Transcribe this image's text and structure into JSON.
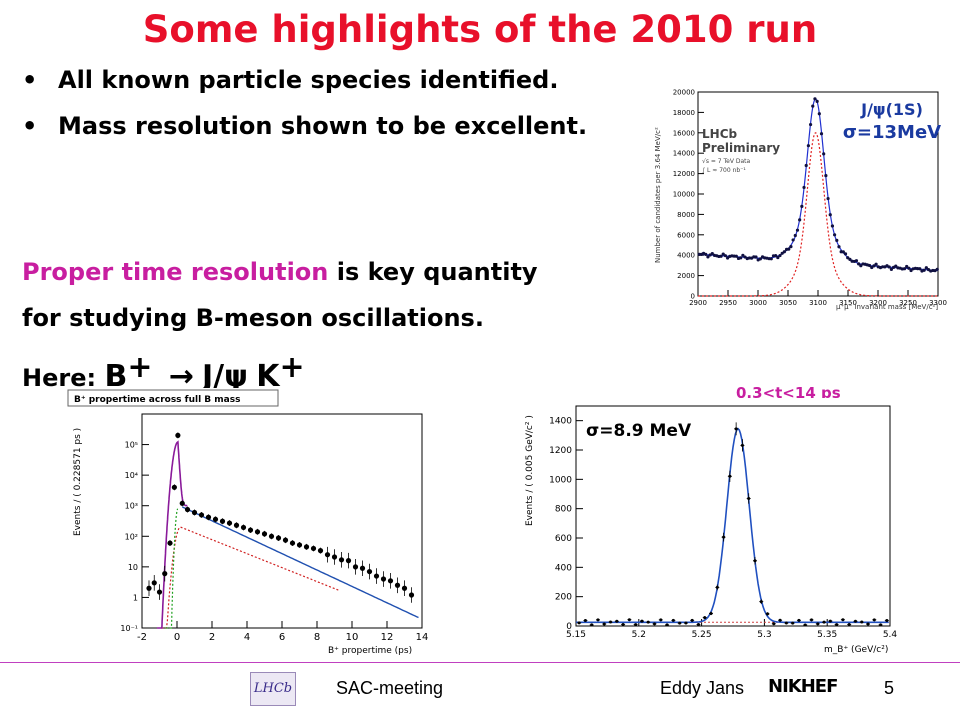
{
  "slide": {
    "title": "Some highlights of the 2010 run",
    "bullets": [
      "All known particle species identified.",
      "Mass resolution shown to be excellent."
    ],
    "bullet_glyph": "•",
    "para1_highlight": "Proper time resolution",
    "para1_rest": " is key quantity",
    "para2": "for studying B-meson oscillations.",
    "here_label": "Here: ",
    "decay": {
      "b": "B",
      "bsup": "+",
      "arrow": "→",
      "jpsi": "J/ψ",
      "k": "K",
      "ksup": "+"
    },
    "colors": {
      "title": "#e8102a",
      "highlight": "#c81ea0",
      "annotation": "#1a3aa0"
    }
  },
  "jpsi_plot": {
    "title_lines": [
      "LHCb",
      "Preliminary"
    ],
    "small_lines": [
      "√s = 7 TeV Data",
      "∫ L ≈ 700 nb⁻¹"
    ],
    "annotation": {
      "particle": "J/ψ(1S)",
      "sigma": "σ=13MeV"
    }
  },
  "proper_time_plot": {
    "title": "B⁺ propertime across full B mass"
  },
  "bmass_plot": {
    "sigma_label": "σ=8.9 MeV",
    "time_window": "0.3<t<14 ps"
  },
  "footer": {
    "meeting": "SAC-meeting",
    "author": "Eddy Jans",
    "nikhef": "NIKHEF",
    "page": "5",
    "lhcb_logo": "LHCb"
  },
  "chart_data": [
    {
      "type": "scatter",
      "title": "",
      "xlabel": "μ⁺μ⁻ invariant mass [MeV/c²]",
      "ylabel": "Number of candidates per 3.64 MeV/c²",
      "xlim": [
        2900,
        3300
      ],
      "ylim": [
        0,
        20000
      ],
      "xticks": [
        2900,
        2950,
        3000,
        3050,
        3100,
        3150,
        3200,
        3250,
        3300
      ],
      "yticks": [
        0,
        2000,
        4000,
        6000,
        8000,
        10000,
        12000,
        14000,
        16000,
        18000,
        20000
      ],
      "fit": {
        "mean": 3096,
        "sigma": 13,
        "signal_peak": 16000,
        "bkg_at_2900": 4100,
        "bkg_at_3300": 2500
      },
      "series": [
        {
          "values": []
        }
      ]
    },
    {
      "type": "scatter",
      "title": "B⁺ propertime across full B mass",
      "xlabel": "B⁺ propertime (ps)",
      "ylabel": "Events / ( 0.228571 ps )",
      "xlim": [
        -2,
        14
      ],
      "ylim": [
        0.1,
        1000000
      ],
      "log_y": true,
      "xticks": [
        -2,
        0,
        2,
        4,
        6,
        8,
        10,
        12,
        14
      ],
      "yticks": [
        0.1,
        1,
        10,
        100,
        1000,
        10000,
        100000
      ],
      "ytick_labels": [
        "10⁻¹",
        "1",
        "10",
        "10²",
        "10³",
        "10⁴",
        "10⁵"
      ],
      "points": {
        "x": [
          0.3,
          0.6,
          1.0,
          1.4,
          1.8,
          2.2,
          2.6,
          3.0,
          3.4,
          3.8,
          4.2,
          4.6,
          5.0,
          5.4,
          5.8,
          6.2,
          6.6,
          7.0,
          7.4,
          7.8,
          8.2,
          8.6,
          9.0,
          9.4,
          9.8,
          10.2,
          10.6,
          11.0,
          11.4,
          11.8,
          12.2,
          12.6,
          13.0,
          13.4
        ],
        "y": [
          1200,
          750,
          600,
          500,
          420,
          360,
          310,
          270,
          230,
          195,
          160,
          140,
          120,
          100,
          88,
          75,
          60,
          52,
          45,
          40,
          34,
          25,
          21,
          17,
          16,
          10,
          9,
          7,
          5,
          4,
          3.5,
          2.5,
          2,
          1.2
        ]
      },
      "prompt_points": {
        "x": [
          -1.6,
          -1.3,
          -1.0,
          -0.7,
          -0.4,
          -0.15,
          0.05
        ],
        "y": [
          2,
          3,
          1.5,
          6,
          60,
          4000,
          200000
        ]
      },
      "series": [
        {
          "values": []
        }
      ]
    },
    {
      "type": "scatter",
      "title": "",
      "xlabel": "m_B⁺ (GeV/c²)",
      "ylabel": "Events / ( 0.005 GeV/c² )",
      "xlim": [
        5.15,
        5.4
      ],
      "ylim": [
        0,
        1500
      ],
      "xticks": [
        5.15,
        5.2,
        5.25,
        5.3,
        5.35,
        5.4
      ],
      "yticks": [
        0,
        200,
        400,
        600,
        800,
        1000,
        1200,
        1400
      ],
      "fit": {
        "mean": 5.279,
        "sigma": 0.0089,
        "peak": 1320,
        "bkg": 25
      },
      "series": [
        {
          "values": []
        }
      ]
    }
  ]
}
